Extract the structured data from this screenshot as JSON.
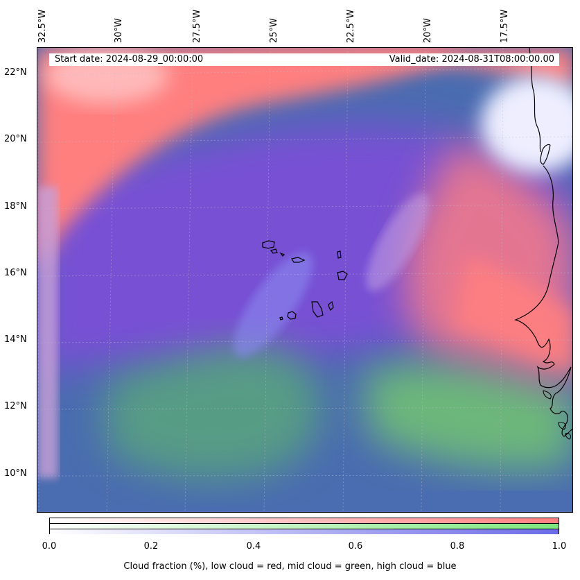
{
  "map": {
    "start_date": "Start date: 2024-08-29_00:00:00",
    "valid_date": "Valid_date: 2024-08-31T08:00:00.00",
    "longitude_labels": [
      "32.5°W",
      "30°W",
      "27.5°W",
      "25°W",
      "22.5°W",
      "20°W",
      "17.5°W"
    ],
    "latitude_labels": [
      "22°N",
      "20°N",
      "18°N",
      "16°N",
      "14°N",
      "12°N",
      "10°N"
    ],
    "colors": {
      "low_cloud": "#ff7a7a",
      "mid_cloud": "#7ee87e",
      "high_cloud": "#6b6be8",
      "coastline": "#000000"
    }
  },
  "colorbar": {
    "ticks": [
      "0.0",
      "0.2",
      "0.4",
      "0.6",
      "0.8",
      "1.0"
    ],
    "caption": "Cloud fraction (%), low cloud = red, mid cloud = green, high cloud = blue"
  }
}
